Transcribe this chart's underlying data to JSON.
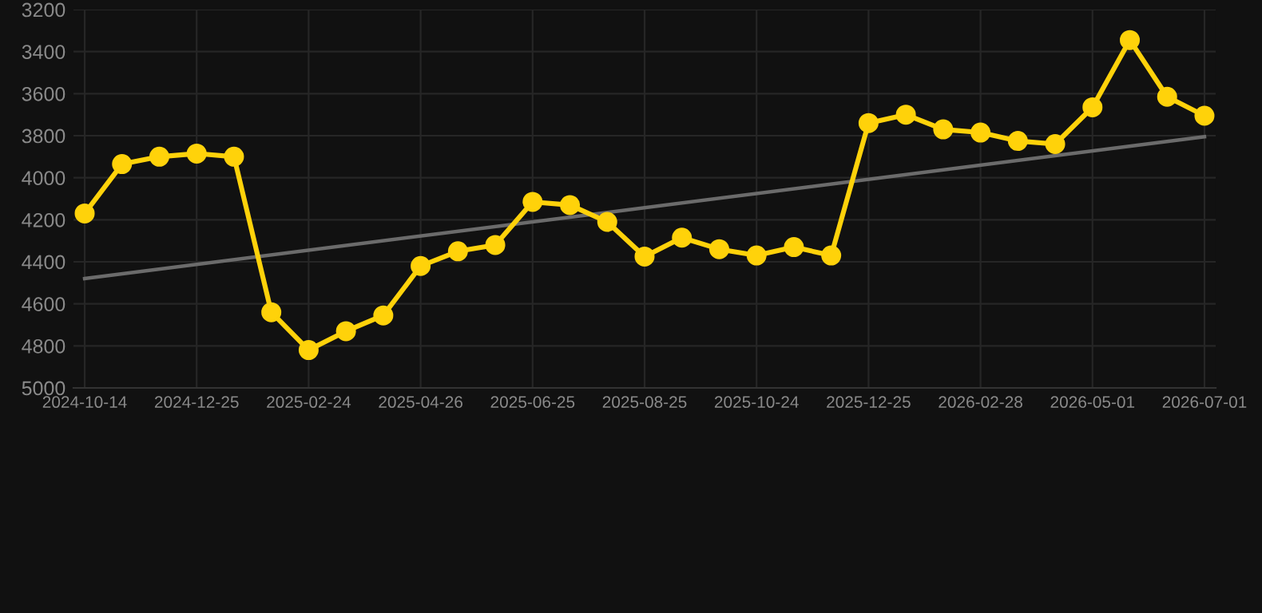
{
  "chart_data": {
    "type": "line",
    "categories": [
      "2024-10-14",
      null,
      null,
      "2024-12-25",
      null,
      null,
      "2025-02-24",
      null,
      null,
      "2025-04-26",
      null,
      null,
      "2025-06-25",
      null,
      null,
      "2025-08-25",
      null,
      null,
      "2025-10-24",
      null,
      null,
      "2025-12-25",
      null,
      null,
      "2026-02-28",
      null,
      null,
      "2026-05-01",
      null,
      null,
      "2026-07-01"
    ],
    "series": [
      {
        "color": "#ffd20a",
        "marker": "circle",
        "values": [
          4170,
          3935,
          3900,
          3885,
          3900,
          4640,
          4820,
          4730,
          4655,
          4420,
          4350,
          4320,
          4115,
          4130,
          4210,
          4375,
          4285,
          4340,
          4370,
          4330,
          4370,
          3740,
          3700,
          3770,
          3785,
          3825,
          3840,
          3665,
          3345,
          3615,
          3705
        ]
      },
      {
        "type": "line",
        "color": "#6b6b6b",
        "marker": "none",
        "values": [
          4480,
          null,
          null,
          null,
          null,
          null,
          null,
          null,
          null,
          null,
          null,
          null,
          null,
          null,
          null,
          null,
          null,
          null,
          null,
          null,
          null,
          null,
          null,
          null,
          null,
          null,
          null,
          null,
          null,
          null,
          3805
        ]
      }
    ],
    "ylim": [
      5000,
      3200
    ],
    "yticks": [
      3200,
      3400,
      3600,
      3800,
      4000,
      4200,
      4400,
      4600,
      4800,
      5000
    ],
    "grid": true,
    "line_style": "solid"
  }
}
